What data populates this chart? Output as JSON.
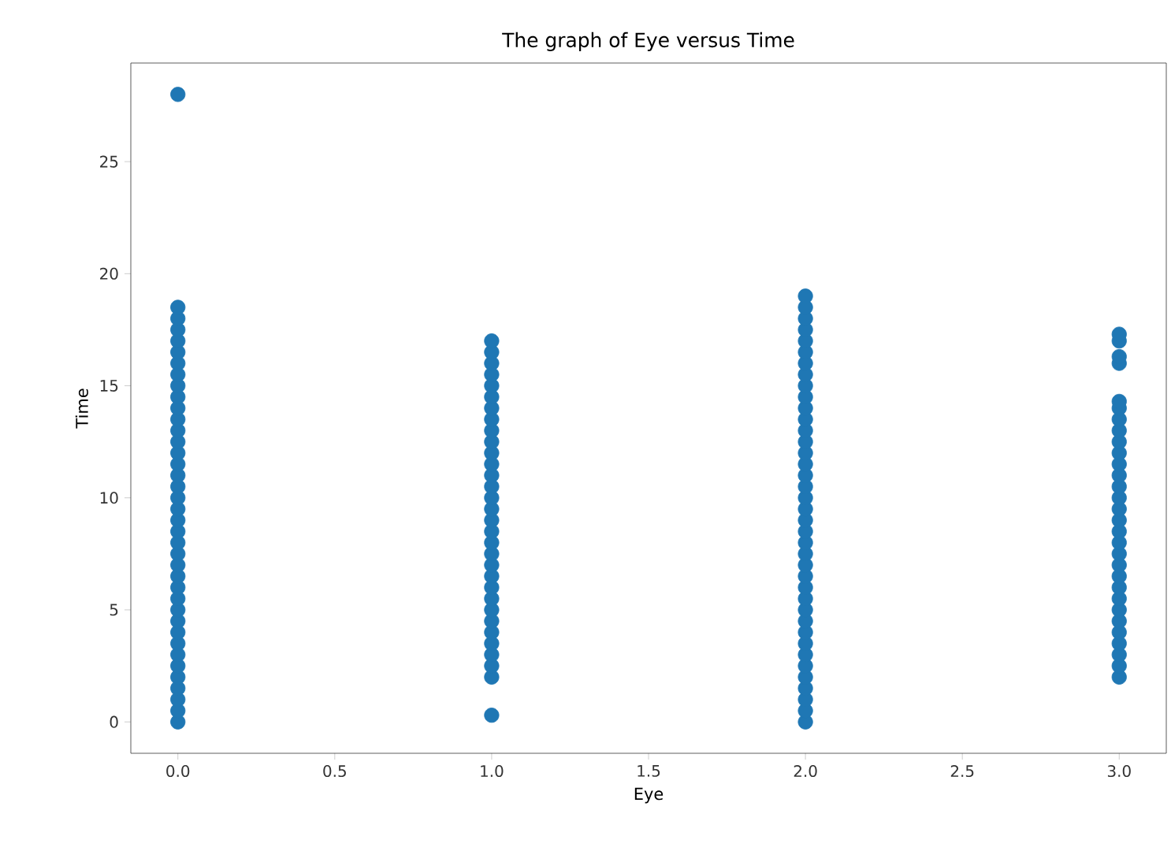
{
  "chart_data": {
    "type": "scatter",
    "title": "The graph of Eye versus Time",
    "xlabel": "Eye",
    "ylabel": "Time",
    "xlim": [
      -0.15,
      3.15
    ],
    "ylim": [
      -1.4,
      29.4
    ],
    "xticks": [
      {
        "value": 0,
        "label": "0.0"
      },
      {
        "value": 0.5,
        "label": "0.5"
      },
      {
        "value": 1,
        "label": "1.0"
      },
      {
        "value": 1.5,
        "label": "1.5"
      },
      {
        "value": 2,
        "label": "2.0"
      },
      {
        "value": 2.5,
        "label": "2.5"
      },
      {
        "value": 3,
        "label": "3.0"
      }
    ],
    "yticks": [
      0,
      5,
      10,
      15,
      20,
      25
    ],
    "grid": false,
    "series": [
      {
        "color": "#1f77b4",
        "x": [
          0,
          0,
          0,
          0,
          0,
          0,
          0,
          0,
          0,
          0,
          0,
          0,
          0,
          0,
          0,
          0,
          0,
          0,
          0,
          0,
          0,
          0,
          0,
          0,
          0,
          0,
          0,
          0,
          0,
          0,
          0,
          0,
          0,
          0,
          0,
          0,
          0,
          0,
          0,
          1,
          1,
          1,
          1,
          1,
          1,
          1,
          1,
          1,
          1,
          1,
          1,
          1,
          1,
          1,
          1,
          1,
          1,
          1,
          1,
          1,
          1,
          1,
          1,
          1,
          1,
          1,
          1,
          1,
          1,
          1,
          1,
          2,
          2,
          2,
          2,
          2,
          2,
          2,
          2,
          2,
          2,
          2,
          2,
          2,
          2,
          2,
          2,
          2,
          2,
          2,
          2,
          2,
          2,
          2,
          2,
          2,
          2,
          2,
          2,
          2,
          2,
          2,
          2,
          2,
          2,
          2,
          2,
          2,
          2,
          2,
          3,
          3,
          3,
          3,
          3,
          3,
          3,
          3,
          3,
          3,
          3,
          3,
          3,
          3,
          3,
          3,
          3,
          3,
          3,
          3,
          3,
          3,
          3,
          3,
          3,
          3,
          3,
          3,
          3,
          3
        ],
        "values": [
          0,
          0.5,
          1,
          1.5,
          2,
          2.5,
          3,
          3.5,
          4,
          4.5,
          5,
          5.5,
          6,
          6.5,
          7,
          7.5,
          8,
          8.5,
          9,
          9.5,
          10,
          10.5,
          11,
          11.5,
          12,
          12.5,
          13,
          13.5,
          14,
          14.5,
          15,
          15.5,
          16,
          16.5,
          17,
          17.5,
          18,
          18.5,
          28,
          0.3,
          2,
          2.5,
          3,
          3.5,
          4,
          4.5,
          5,
          5.5,
          6,
          6.5,
          7,
          7.5,
          8,
          8.5,
          9,
          9.5,
          10,
          10.5,
          11,
          11.5,
          12,
          12.5,
          13,
          13.5,
          14,
          14.5,
          15,
          15.5,
          16,
          16.5,
          17,
          0,
          0.5,
          1,
          1.5,
          2,
          2.5,
          3,
          3.5,
          4,
          4.5,
          5,
          5.5,
          6,
          6.5,
          7,
          7.5,
          8,
          8.5,
          9,
          9.5,
          10,
          10.5,
          11,
          11.5,
          12,
          12.5,
          13,
          13.5,
          14,
          14.5,
          15,
          15.5,
          16,
          16.5,
          17,
          17.5,
          18,
          18.5,
          19,
          2,
          2.5,
          3,
          3.5,
          4,
          4.5,
          5,
          5.5,
          6,
          6.5,
          7,
          7.5,
          8,
          8.5,
          9,
          9.5,
          10,
          10.5,
          11,
          11.5,
          12,
          12.5,
          13,
          13.5,
          14,
          14.3,
          16,
          16.3,
          17,
          17.3
        ]
      }
    ]
  }
}
